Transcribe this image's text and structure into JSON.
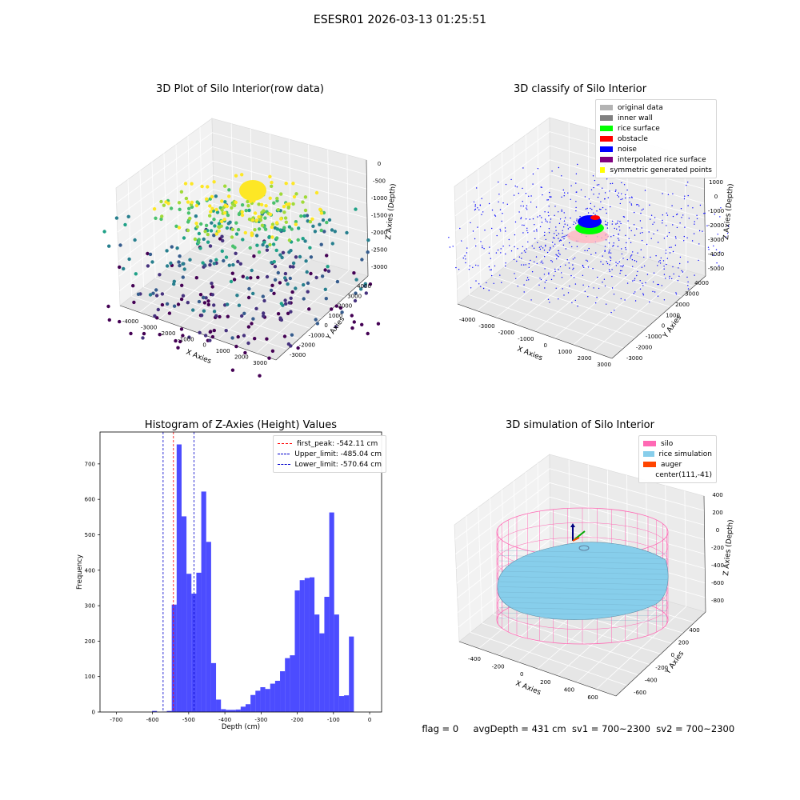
{
  "suptitle": "ESESR01 2026-03-13 01:25:51",
  "panels": {
    "raw": {
      "title": "3D Plot of Silo Interior(row data)",
      "xlabel": "X Axies",
      "ylabel": "Y Axies",
      "zlabel": "Z Axies (Depth)",
      "xticks": [
        "-4000",
        "-3000",
        "-2000",
        "-1000",
        "0",
        "1000",
        "2000",
        "3000"
      ],
      "yticks": [
        "4000",
        "3000",
        "2000",
        "1000",
        "0",
        "-1000",
        "-2000",
        "-3000"
      ],
      "zticks": [
        "0",
        "-500",
        "-1000",
        "-1500",
        "-2000",
        "-2500",
        "-3000"
      ]
    },
    "classify": {
      "title": "3D classify of Silo Interior",
      "xlabel": "X Axies",
      "ylabel": "Y Axies",
      "zlabel": "Z Axies (Depth)",
      "xticks": [
        "-4000",
        "-3000",
        "-2000",
        "-1000",
        "0",
        "1000",
        "2000",
        "3000"
      ],
      "yticks": [
        "4000",
        "3000",
        "2000",
        "1000",
        "0",
        "-1000",
        "-2000",
        "-3000"
      ],
      "zticks": [
        "1000",
        "0",
        "-1000",
        "-2000",
        "-3000",
        "-4000",
        "-5000"
      ],
      "legend": [
        {
          "label": "original data",
          "color": "#b3b3b3"
        },
        {
          "label": "inner wall",
          "color": "#808080"
        },
        {
          "label": "rice surface",
          "color": "#00ff00"
        },
        {
          "label": "obstacle",
          "color": "#ff0000"
        },
        {
          "label": "noise",
          "color": "#0000ff"
        },
        {
          "label": "interpolated rice surface",
          "color": "#800080"
        },
        {
          "label": "symmetric generated points",
          "color": "#ffff00"
        }
      ]
    },
    "simulation": {
      "title": "3D simulation of Silo Interior",
      "xlabel": "X Axies",
      "ylabel": "Y Axies",
      "zlabel": "Z Axies (Depth)",
      "xticks": [
        "-400",
        "-200",
        "0",
        "200",
        "400",
        "600"
      ],
      "yticks": [
        "400",
        "200",
        "0",
        "-200",
        "-400",
        "-600"
      ],
      "zticks": [
        "400",
        "200",
        "0",
        "-200",
        "-400",
        "-600",
        "-800"
      ],
      "legend": [
        {
          "label": "silo",
          "color": "#ff69b4"
        },
        {
          "label": "rice simulation",
          "color": "#87ceeb"
        },
        {
          "label": "auger",
          "color": "#ff4500"
        },
        {
          "label": "center(111,-41)",
          "color": ""
        }
      ]
    }
  },
  "chart_data": {
    "type": "bar",
    "title": "Histogram of Z-Axies (Height) Values",
    "xlabel": "Depth (cm)",
    "ylabel": "Frequency",
    "xlim": [
      -745,
      33
    ],
    "ylim": [
      0,
      790
    ],
    "xticks": [
      -700,
      -600,
      -500,
      -400,
      -300,
      -200,
      -100,
      0
    ],
    "yticks": [
      0,
      100,
      200,
      300,
      400,
      500,
      600,
      700
    ],
    "bar_color": "#0000ff",
    "bin_start": -642,
    "bin_width": 13.6,
    "values": [
      0,
      0,
      0,
      3,
      0,
      1,
      3,
      303,
      755,
      552,
      390,
      334,
      393,
      622,
      480,
      138,
      35,
      8,
      6,
      6,
      7,
      15,
      22,
      48,
      60,
      70,
      65,
      80,
      88,
      115,
      152,
      160,
      343,
      372,
      378,
      380,
      275,
      222,
      325,
      563,
      275,
      45,
      47,
      213
    ],
    "vlines": [
      {
        "label": "first_peak: -542.11 cm",
        "x": -542.11,
        "color": "#ff0000"
      },
      {
        "label": "Upper_limit: -485.04 cm",
        "x": -485.04,
        "color": "#0000cc"
      },
      {
        "label": "Lower_limit: -570.64 cm",
        "x": -570.64,
        "color": "#0000cc"
      }
    ]
  },
  "footer": {
    "flag": "flag = 0",
    "avg": "avgDepth = 431 cm",
    "sv1": "sv1 = 700~2300",
    "sv2": "sv2 = 700~2300"
  }
}
